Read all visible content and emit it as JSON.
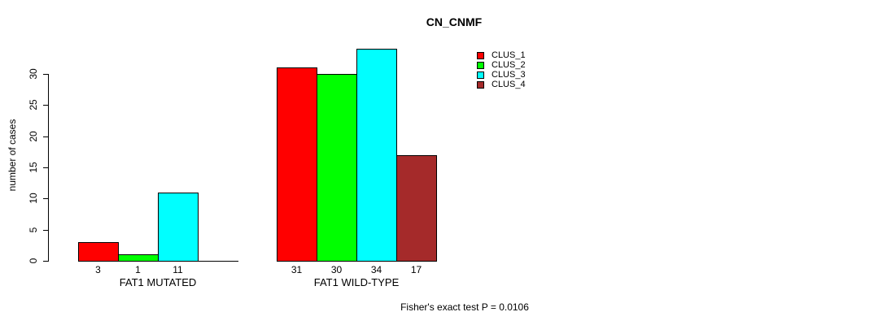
{
  "title": "CN_CNMF",
  "y_axis": {
    "label": "number of cases",
    "ticks": [
      0,
      5,
      10,
      15,
      20,
      25,
      30
    ]
  },
  "legend": {
    "items": [
      {
        "label": "CLUS_1",
        "color": "#ff0000"
      },
      {
        "label": "CLUS_2",
        "color": "#00ff00"
      },
      {
        "label": "CLUS_3",
        "color": "#00ffff"
      },
      {
        "label": "CLUS_4",
        "color": "#a52a2a"
      }
    ]
  },
  "footer": "Fisher's exact test P = 0.0106",
  "chart_data": {
    "type": "bar",
    "title": "CN_CNMF",
    "ylabel": "number of cases",
    "ylim": [
      0,
      34
    ],
    "yticks": [
      0,
      5,
      10,
      15,
      20,
      25,
      30
    ],
    "categories": [
      "FAT1 MUTATED",
      "FAT1 WILD-TYPE"
    ],
    "series": [
      {
        "name": "CLUS_1",
        "color": "#ff0000",
        "values": [
          3,
          31
        ]
      },
      {
        "name": "CLUS_2",
        "color": "#00ff00",
        "values": [
          1,
          30
        ]
      },
      {
        "name": "CLUS_3",
        "color": "#00ffff",
        "values": [
          11,
          34
        ]
      },
      {
        "name": "CLUS_4",
        "color": "#a52a2a",
        "values": [
          0,
          17
        ]
      }
    ],
    "bar_value_labels": [
      "3",
      "1",
      "11",
      "",
      "31",
      "30",
      "34",
      "17"
    ],
    "annotation": "Fisher's exact test P = 0.0106",
    "legend_position": "top-right",
    "grid": false
  }
}
